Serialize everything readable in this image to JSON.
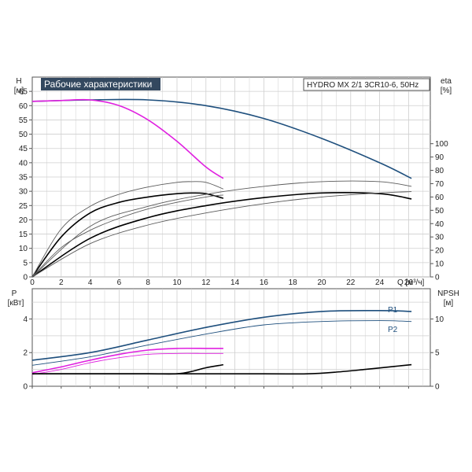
{
  "title": "Рабочие характеристики",
  "model": "HYDRO MX 2/1 3CR10-6, 50Hz",
  "colors": {
    "head": "#1e4f7d",
    "npsh": "#e020e0",
    "eta": "#000000",
    "thin": "#5a5a5a",
    "grid": "#cfcfcf",
    "title_bg": "#33485f"
  },
  "chart_data": [
    {
      "type": "line",
      "title": "Рабочие характеристики",
      "ylabel_top": "H",
      "ylabel_unit": "[м]",
      "y2label_top": "eta",
      "y2label_unit": "[%]",
      "xlabel": "Q [м³/ч]",
      "xlim": [
        0,
        27.5
      ],
      "ylim": [
        0,
        70
      ],
      "y2lim": [
        0,
        150
      ],
      "x_ticks": [
        0,
        2,
        4,
        6,
        8,
        10,
        12,
        14,
        16,
        18,
        20,
        22,
        24,
        26
      ],
      "y_ticks": [
        0,
        5,
        10,
        15,
        20,
        25,
        30,
        35,
        40,
        45,
        50,
        55,
        60,
        65
      ],
      "y2_ticks": [
        0,
        10,
        20,
        30,
        40,
        50,
        60,
        70,
        80,
        90,
        100
      ],
      "grid": true,
      "series": [
        {
          "kind": "head",
          "axis": "left",
          "x": [
            0,
            4,
            8,
            12,
            16,
            20,
            24,
            26.2
          ],
          "y": [
            61.5,
            62.0,
            62.0,
            60.0,
            55.5,
            48.5,
            40.0,
            34.5
          ]
        },
        {
          "kind": "head-magenta",
          "axis": "left",
          "x": [
            0,
            2,
            4,
            6,
            8,
            10,
            12,
            13.2
          ],
          "y": [
            61.5,
            61.8,
            62.0,
            60.0,
            55.0,
            47.5,
            38.5,
            34.5
          ]
        },
        {
          "kind": "eta-black",
          "axis": "right",
          "x": [
            0,
            2,
            4,
            6,
            8,
            10,
            11,
            12,
            13.2
          ],
          "y": [
            0,
            30,
            48,
            56,
            60,
            62.5,
            63,
            62.5,
            59
          ]
        },
        {
          "kind": "eta-black",
          "axis": "right",
          "x": [
            0,
            4,
            8,
            12,
            16,
            20,
            24,
            26.2
          ],
          "y": [
            0,
            29,
            44.5,
            53.5,
            59.5,
            63,
            62.5,
            58.5
          ]
        },
        {
          "kind": "eta-thin",
          "axis": "right",
          "x": [
            0,
            2,
            4,
            6,
            8,
            10,
            11,
            12,
            13.2
          ],
          "y": [
            0,
            36,
            53,
            62,
            67.5,
            71,
            71.5,
            71,
            66
          ]
        },
        {
          "kind": "eta-thin",
          "axis": "right",
          "x": [
            0,
            2,
            4,
            6,
            8,
            10,
            12,
            13.2
          ],
          "y": [
            0,
            22,
            35,
            44,
            51,
            56,
            60,
            61.5
          ]
        },
        {
          "kind": "eta-thin",
          "axis": "right",
          "x": [
            0,
            4,
            8,
            12,
            16,
            20,
            24,
            26.2
          ],
          "y": [
            0,
            38,
            53,
            62,
            68,
            71.5,
            71.5,
            68
          ]
        },
        {
          "kind": "eta-thin",
          "axis": "right",
          "x": [
            0,
            4,
            8,
            12,
            16,
            20,
            24,
            26.2
          ],
          "y": [
            0,
            25,
            39,
            48,
            55,
            60,
            63,
            64
          ]
        }
      ]
    },
    {
      "type": "line",
      "ylabel_top": "P",
      "ylabel_unit": "[кВт]",
      "y2label_top": "NPSH",
      "y2label_unit": "[м]",
      "xlim": [
        0,
        27.5
      ],
      "ylim": [
        0,
        5.8
      ],
      "y2lim": [
        0,
        14.5
      ],
      "y_ticks": [
        0,
        2,
        4
      ],
      "y2_ticks": [
        0,
        5,
        10
      ],
      "grid": true,
      "series": [
        {
          "kind": "power",
          "axis": "left",
          "name": "P1",
          "x": [
            0,
            4,
            8,
            12,
            16,
            20,
            24,
            26.2
          ],
          "y": [
            1.55,
            2.0,
            2.75,
            3.5,
            4.1,
            4.45,
            4.5,
            4.45
          ]
        },
        {
          "kind": "power-thin",
          "axis": "left",
          "name": "P2",
          "x": [
            0,
            4,
            8,
            12,
            16,
            20,
            24,
            26.2
          ],
          "y": [
            1.25,
            1.75,
            2.45,
            3.1,
            3.65,
            3.85,
            3.9,
            3.85
          ]
        },
        {
          "kind": "power-magenta",
          "axis": "left",
          "x": [
            0,
            2,
            4,
            6,
            8,
            10,
            12,
            13.2
          ],
          "y": [
            0.8,
            1.15,
            1.55,
            1.9,
            2.15,
            2.25,
            2.25,
            2.25
          ]
        },
        {
          "kind": "power-magenta-thin",
          "axis": "left",
          "x": [
            0,
            2,
            4,
            6,
            8,
            10,
            12,
            13.2
          ],
          "y": [
            0.7,
            1.0,
            1.4,
            1.7,
            1.9,
            1.95,
            1.95,
            1.95
          ]
        },
        {
          "kind": "npsh",
          "axis": "right",
          "x": [
            0,
            4,
            8,
            10,
            11,
            12,
            13.2
          ],
          "y": [
            1.85,
            1.85,
            1.85,
            1.85,
            2.2,
            2.75,
            3.2
          ]
        },
        {
          "kind": "npsh",
          "axis": "right",
          "x": [
            0,
            8,
            16,
            19,
            21,
            23,
            25,
            26.2
          ],
          "y": [
            1.85,
            1.85,
            1.85,
            1.85,
            2.1,
            2.5,
            2.95,
            3.2
          ]
        }
      ]
    }
  ]
}
